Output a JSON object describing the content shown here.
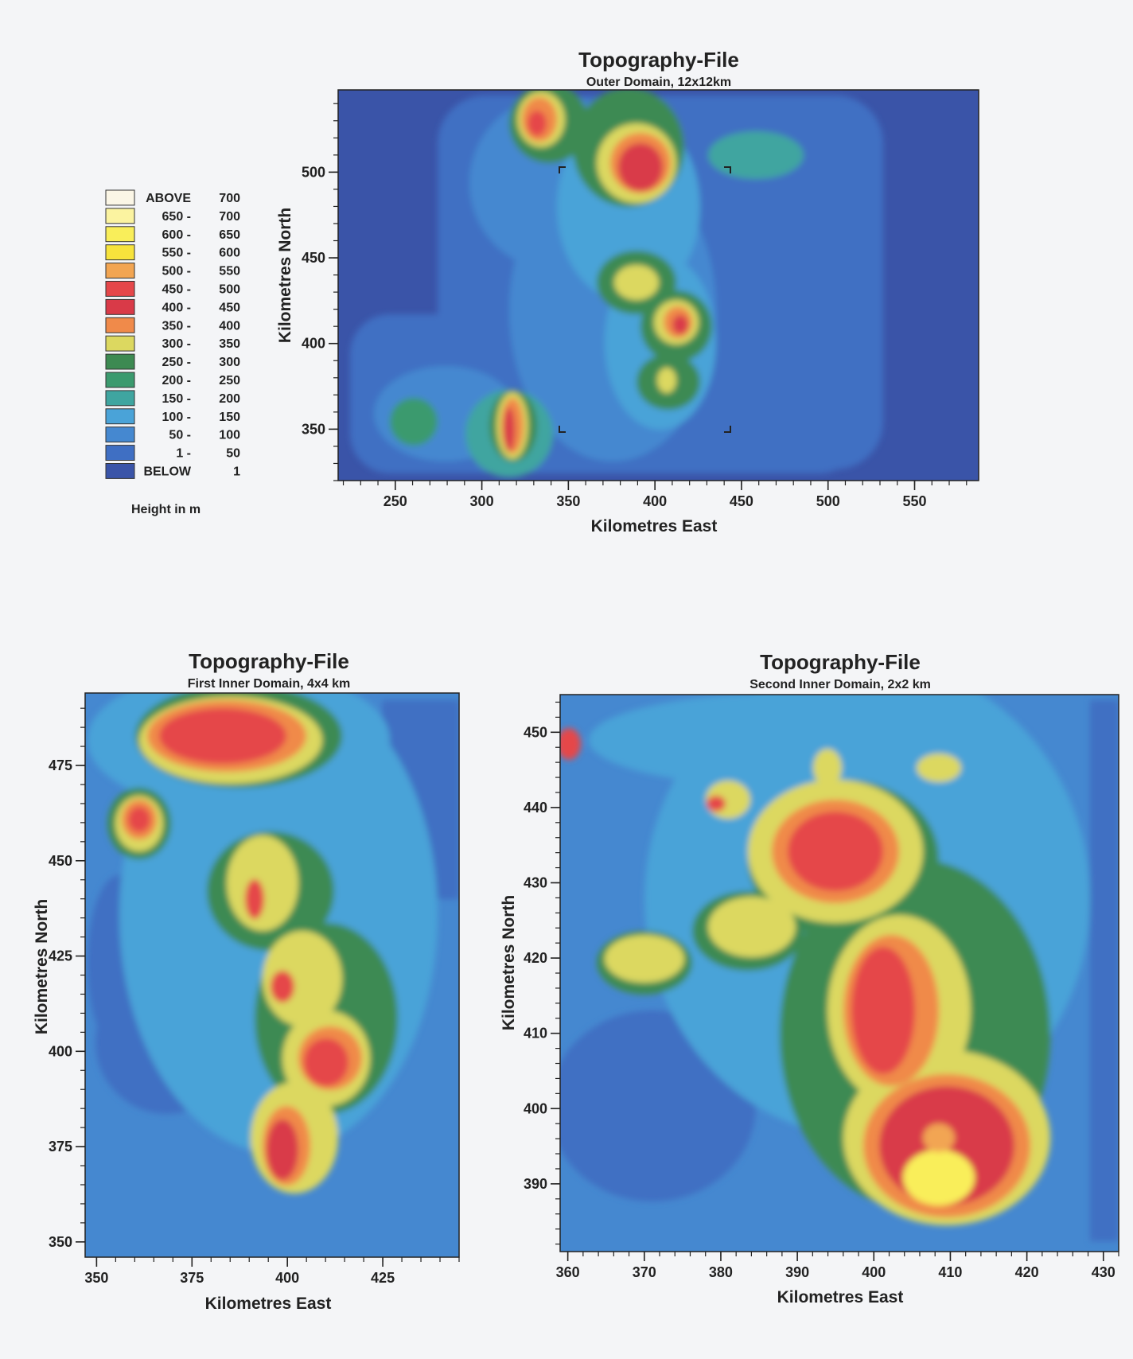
{
  "legend": {
    "title": "Height in m",
    "items": [
      {
        "label_left": "ABOVE",
        "label_right": "700",
        "color": "#fbf6e6"
      },
      {
        "label_left": "650 -",
        "label_right": "700",
        "color": "#fbf3a0"
      },
      {
        "label_left": "600 -",
        "label_right": "650",
        "color": "#f9ee5a"
      },
      {
        "label_left": "550 -",
        "label_right": "600",
        "color": "#f7e33c"
      },
      {
        "label_left": "500 -",
        "label_right": "550",
        "color": "#f2a552"
      },
      {
        "label_left": "450 -",
        "label_right": "500",
        "color": "#e5474a"
      },
      {
        "label_left": "400 -",
        "label_right": "450",
        "color": "#d93a48"
      },
      {
        "label_left": "350 -",
        "label_right": "400",
        "color": "#f08a4a"
      },
      {
        "label_left": "300 -",
        "label_right": "350",
        "color": "#dcd860"
      },
      {
        "label_left": "250 -",
        "label_right": "300",
        "color": "#3d8a52"
      },
      {
        "label_left": "200 -",
        "label_right": "250",
        "color": "#3b9a6e"
      },
      {
        "label_left": "150 -",
        "label_right": "200",
        "color": "#3fa5a0"
      },
      {
        "label_left": "100 -",
        "label_right": "150",
        "color": "#4aa3d8"
      },
      {
        "label_left": "50 -",
        "label_right": "100",
        "color": "#4588d0"
      },
      {
        "label_left": "1 -",
        "label_right": "50",
        "color": "#3f6fc3"
      },
      {
        "label_left": "BELOW",
        "label_right": "1",
        "color": "#3a54a8"
      }
    ]
  },
  "chart_data": [
    {
      "type": "heatmap",
      "title": "Topography-File",
      "subtitle": "Outer Domain, 12x12km",
      "xlabel": "Kilometres East",
      "ylabel": "Kilometres North",
      "xlim": [
        217,
        587
      ],
      "ylim": [
        320,
        548
      ],
      "xticks": [
        250,
        300,
        350,
        400,
        450,
        500,
        550
      ],
      "yticks": [
        350,
        400,
        450,
        500
      ]
    },
    {
      "type": "heatmap",
      "title": "Topography-File",
      "subtitle": "First Inner Domain, 4x4 km",
      "xlabel": "Kilometres East",
      "ylabel": "Kilometres North",
      "xlim": [
        347,
        445
      ],
      "ylim": [
        346,
        494
      ],
      "xticks": [
        350,
        375,
        400,
        425
      ],
      "yticks": [
        350,
        375,
        400,
        425,
        450,
        475
      ]
    },
    {
      "type": "heatmap",
      "title": "Topography-File",
      "subtitle": "Second Inner Domain, 2x2 km",
      "xlabel": "Kilometres East",
      "ylabel": "Kilometres North",
      "xlim": [
        359,
        432
      ],
      "ylim": [
        381,
        455
      ],
      "xticks": [
        360,
        370,
        380,
        390,
        400,
        410,
        420,
        430
      ],
      "yticks": [
        390,
        400,
        410,
        420,
        430,
        440,
        450
      ]
    }
  ]
}
